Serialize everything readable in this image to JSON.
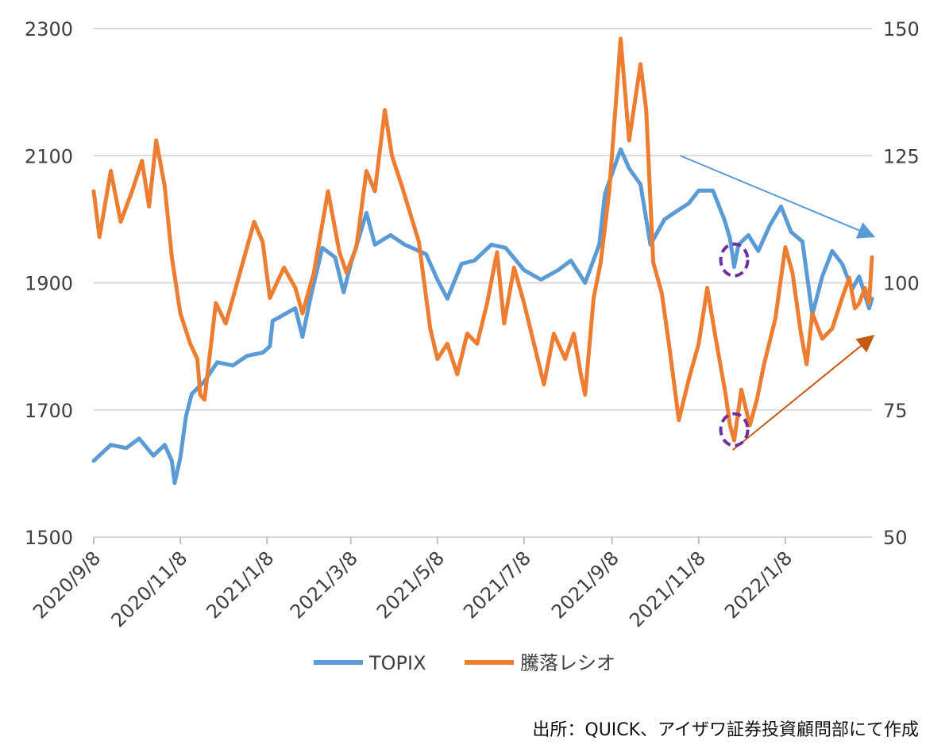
{
  "chart_data": {
    "type": "line",
    "title": "",
    "xlabel": "",
    "ylabel": "",
    "x_tick_labels": [
      "2020/9/8",
      "2020/11/8",
      "2021/1/8",
      "2021/3/8",
      "2021/5/8",
      "2021/7/8",
      "2021/9/8",
      "2021/11/8",
      "2022/1/8"
    ],
    "x_range": [
      "2020-09-08",
      "2022-03-10"
    ],
    "y_left": {
      "ticks": [
        "1500",
        "1700",
        "1900",
        "2100",
        "2300"
      ],
      "ylim": [
        1500,
        2300
      ]
    },
    "y_right": {
      "ticks": [
        "50",
        "75",
        "100",
        "125",
        "150"
      ],
      "ylim": [
        50,
        150
      ]
    },
    "grid": "horizontal",
    "legend_position": "bottom",
    "series": [
      {
        "name": "TOPIX",
        "axis": "left",
        "color": "#5b9bd5",
        "points": [
          [
            "2020-09-08",
            1620
          ],
          [
            "2020-09-20",
            1645
          ],
          [
            "2020-10-01",
            1640
          ],
          [
            "2020-10-10",
            1655
          ],
          [
            "2020-10-20",
            1628
          ],
          [
            "2020-10-28",
            1645
          ],
          [
            "2020-11-02",
            1620
          ],
          [
            "2020-11-04",
            1585
          ],
          [
            "2020-11-08",
            1625
          ],
          [
            "2020-11-12",
            1690
          ],
          [
            "2020-11-16",
            1725
          ],
          [
            "2020-11-25",
            1745
          ],
          [
            "2020-12-04",
            1775
          ],
          [
            "2020-12-15",
            1770
          ],
          [
            "2020-12-25",
            1785
          ],
          [
            "2021-01-05",
            1790
          ],
          [
            "2021-01-10",
            1800
          ],
          [
            "2021-01-12",
            1840
          ],
          [
            "2021-01-20",
            1850
          ],
          [
            "2021-01-28",
            1860
          ],
          [
            "2021-02-02",
            1815
          ],
          [
            "2021-02-08",
            1880
          ],
          [
            "2021-02-16",
            1955
          ],
          [
            "2021-02-25",
            1940
          ],
          [
            "2021-03-03",
            1885
          ],
          [
            "2021-03-08",
            1930
          ],
          [
            "2021-03-15",
            1980
          ],
          [
            "2021-03-19",
            2010
          ],
          [
            "2021-03-25",
            1960
          ],
          [
            "2021-04-05",
            1975
          ],
          [
            "2021-04-15",
            1960
          ],
          [
            "2021-04-30",
            1945
          ],
          [
            "2021-05-08",
            1905
          ],
          [
            "2021-05-15",
            1875
          ],
          [
            "2021-05-25",
            1930
          ],
          [
            "2021-06-03",
            1935
          ],
          [
            "2021-06-15",
            1960
          ],
          [
            "2021-06-25",
            1955
          ],
          [
            "2021-07-08",
            1920
          ],
          [
            "2021-07-20",
            1905
          ],
          [
            "2021-08-01",
            1920
          ],
          [
            "2021-08-10",
            1935
          ],
          [
            "2021-08-20",
            1900
          ],
          [
            "2021-08-30",
            1960
          ],
          [
            "2021-09-03",
            2040
          ],
          [
            "2021-09-14",
            2110
          ],
          [
            "2021-09-20",
            2080
          ],
          [
            "2021-09-28",
            2055
          ],
          [
            "2021-10-05",
            1960
          ],
          [
            "2021-10-15",
            2000
          ],
          [
            "2021-10-25",
            2015
          ],
          [
            "2021-11-01",
            2025
          ],
          [
            "2021-11-08",
            2045
          ],
          [
            "2021-11-18",
            2045
          ],
          [
            "2021-11-26",
            2000
          ],
          [
            "2021-11-30",
            1970
          ],
          [
            "2021-12-03",
            1925
          ],
          [
            "2021-12-06",
            1960
          ],
          [
            "2021-12-13",
            1975
          ],
          [
            "2021-12-20",
            1950
          ],
          [
            "2021-12-28",
            1990
          ],
          [
            "2022-01-05",
            2020
          ],
          [
            "2022-01-12",
            1980
          ],
          [
            "2022-01-20",
            1965
          ],
          [
            "2022-01-27",
            1850
          ],
          [
            "2022-02-03",
            1910
          ],
          [
            "2022-02-10",
            1950
          ],
          [
            "2022-02-17",
            1930
          ],
          [
            "2022-02-24",
            1890
          ],
          [
            "2022-03-01",
            1910
          ],
          [
            "2022-03-08",
            1860
          ],
          [
            "2022-03-10",
            1875
          ]
        ]
      },
      {
        "name": "騰落レシオ",
        "axis": "right",
        "color": "#ed7d31",
        "points": [
          [
            "2020-09-08",
            118
          ],
          [
            "2020-09-12",
            109
          ],
          [
            "2020-09-20",
            122
          ],
          [
            "2020-09-27",
            112
          ],
          [
            "2020-10-05",
            118
          ],
          [
            "2020-10-12",
            124
          ],
          [
            "2020-10-17",
            115
          ],
          [
            "2020-10-22",
            128
          ],
          [
            "2020-10-28",
            119
          ],
          [
            "2020-11-02",
            105
          ],
          [
            "2020-11-08",
            94
          ],
          [
            "2020-11-15",
            88
          ],
          [
            "2020-11-20",
            85
          ],
          [
            "2020-11-22",
            78
          ],
          [
            "2020-11-25",
            77
          ],
          [
            "2020-12-03",
            96
          ],
          [
            "2020-12-10",
            92
          ],
          [
            "2020-12-20",
            102
          ],
          [
            "2020-12-30",
            112
          ],
          [
            "2021-01-05",
            108
          ],
          [
            "2021-01-10",
            97
          ],
          [
            "2021-01-20",
            103
          ],
          [
            "2021-01-28",
            99
          ],
          [
            "2021-02-02",
            94
          ],
          [
            "2021-02-10",
            102
          ],
          [
            "2021-02-20",
            118
          ],
          [
            "2021-02-28",
            106
          ],
          [
            "2021-03-05",
            102
          ],
          [
            "2021-03-12",
            107
          ],
          [
            "2021-03-19",
            122
          ],
          [
            "2021-03-25",
            118
          ],
          [
            "2021-04-01",
            134
          ],
          [
            "2021-04-06",
            125
          ],
          [
            "2021-04-13",
            119
          ],
          [
            "2021-04-25",
            108
          ],
          [
            "2021-05-03",
            91
          ],
          [
            "2021-05-08",
            85
          ],
          [
            "2021-05-15",
            88
          ],
          [
            "2021-05-22",
            82
          ],
          [
            "2021-05-29",
            90
          ],
          [
            "2021-06-05",
            88
          ],
          [
            "2021-06-12",
            96
          ],
          [
            "2021-06-19",
            106
          ],
          [
            "2021-06-24",
            92
          ],
          [
            "2021-07-01",
            103
          ],
          [
            "2021-07-08",
            96
          ],
          [
            "2021-07-15",
            88
          ],
          [
            "2021-07-22",
            80
          ],
          [
            "2021-07-29",
            90
          ],
          [
            "2021-08-06",
            85
          ],
          [
            "2021-08-12",
            90
          ],
          [
            "2021-08-17",
            82
          ],
          [
            "2021-08-20",
            78
          ],
          [
            "2021-08-26",
            97
          ],
          [
            "2021-08-31",
            104
          ],
          [
            "2021-09-06",
            118
          ],
          [
            "2021-09-14",
            148
          ],
          [
            "2021-09-20",
            128
          ],
          [
            "2021-09-28",
            143
          ],
          [
            "2021-10-02",
            134
          ],
          [
            "2021-10-07",
            104
          ],
          [
            "2021-10-13",
            98
          ],
          [
            "2021-10-18",
            88
          ],
          [
            "2021-10-25",
            73
          ],
          [
            "2021-11-01",
            81
          ],
          [
            "2021-11-08",
            88
          ],
          [
            "2021-11-14",
            99
          ],
          [
            "2021-11-20",
            89
          ],
          [
            "2021-11-27",
            78
          ],
          [
            "2021-11-30",
            72
          ],
          [
            "2021-12-03",
            69
          ],
          [
            "2021-12-08",
            79
          ],
          [
            "2021-12-14",
            72
          ],
          [
            "2021-12-19",
            77
          ],
          [
            "2021-12-24",
            84
          ],
          [
            "2022-01-01",
            93
          ],
          [
            "2022-01-08",
            107
          ],
          [
            "2022-01-13",
            102
          ],
          [
            "2022-01-19",
            90
          ],
          [
            "2022-01-23",
            84
          ],
          [
            "2022-01-27",
            94
          ],
          [
            "2022-02-03",
            89
          ],
          [
            "2022-02-10",
            91
          ],
          [
            "2022-02-17",
            97
          ],
          [
            "2022-02-22",
            101
          ],
          [
            "2022-02-26",
            95
          ],
          [
            "2022-03-01",
            96
          ],
          [
            "2022-03-05",
            99
          ],
          [
            "2022-03-08",
            96
          ],
          [
            "2022-03-10",
            105
          ]
        ]
      }
    ],
    "annotations": [
      {
        "type": "trend-arrow",
        "series": "TOPIX",
        "color": "#5b9bd5",
        "from": [
          "2021-10-26",
          2100
        ],
        "to": [
          "2022-03-09",
          1975
        ]
      },
      {
        "type": "trend-arrow",
        "series": "騰落レシオ",
        "color": "#c55a11",
        "from": [
          "2021-12-02",
          1637
        ],
        "to": [
          "2022-03-09",
          1813
        ]
      },
      {
        "type": "circle",
        "color": "#7030a0",
        "at": [
          "2021-12-03",
          1936
        ]
      },
      {
        "type": "circle",
        "color": "#7030a0",
        "at": [
          "2021-12-03",
          1669
        ]
      }
    ]
  },
  "source_note": "出所：QUICK、アイザワ証券投資顧問部にて作成"
}
